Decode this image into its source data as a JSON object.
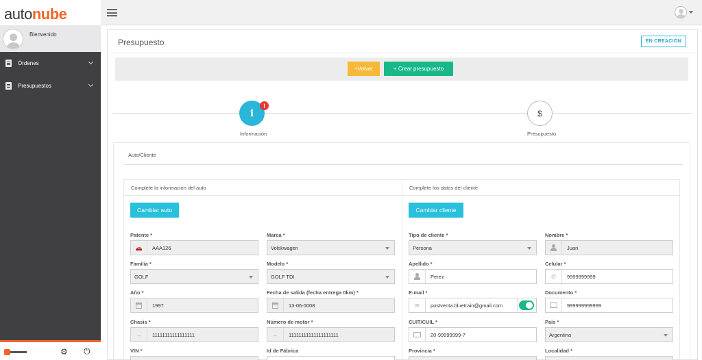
{
  "brand": {
    "logo_part1": "auto",
    "logo_part2": "nube"
  },
  "sidebar": {
    "welcome": "Bienvenido",
    "items": [
      {
        "label": "Órdenes",
        "icon": "clipboard-icon"
      },
      {
        "label": "Presupuestos",
        "icon": "invoice-icon"
      }
    ]
  },
  "main": {
    "title": "Presupuesto",
    "status": "EN CREACIÓN",
    "actions": {
      "volver": "+Volver",
      "crear": "+ Crear presupuesto"
    }
  },
  "steps": [
    {
      "label": "Información",
      "icon": "info-icon",
      "alert": "!"
    },
    {
      "label": "Presupuesto",
      "icon": "invoice-icon"
    }
  ],
  "tab": {
    "label": "Auto/Cliente"
  },
  "auto": {
    "header": "Complete la información del auto",
    "change_button": "Cambiar auto",
    "fields": {
      "patente": {
        "label": "Patente *",
        "value": "AAA126"
      },
      "marca": {
        "label": "Marca *",
        "value": "Volskwagen"
      },
      "familia": {
        "label": "Familia *",
        "value": "GOLF"
      },
      "modelo": {
        "label": "Modelo *",
        "value": "GOLF TDI"
      },
      "anio": {
        "label": "Año *",
        "value": "1997"
      },
      "fecha_salida": {
        "label": "Fecha de salida (fecha entrega 0km) *",
        "value": "13-06-0008"
      },
      "chasis": {
        "label": "Chasis *",
        "value": "11111111111111111"
      },
      "motor": {
        "label": "Número de motor *",
        "value": "11111111111111111111"
      },
      "vin": {
        "label": "VIN *"
      },
      "id_fabrica": {
        "label": "Id de Fábrica"
      }
    }
  },
  "cliente": {
    "header": "Complete los datos del cliente",
    "change_button": "Cambiar cliente",
    "fields": {
      "tipo": {
        "label": "Tipo de cliente *",
        "value": "Persona"
      },
      "nombre": {
        "label": "Nombre *",
        "value": "Juan"
      },
      "apellido": {
        "label": "Apellido *",
        "value": "Perez"
      },
      "celular": {
        "label": "Celular *",
        "value": "9999999999"
      },
      "email": {
        "label": "E-mail *",
        "value": "postventa.bluetrain@gmail.com"
      },
      "documento": {
        "label": "Documento *",
        "value": "999999999999"
      },
      "cuit": {
        "label": "CUIT/CUIL *",
        "value": "20-99999999-7"
      },
      "pais": {
        "label": "País *",
        "value": "Argentina"
      },
      "provincia": {
        "label": "Provincia *"
      },
      "localidad": {
        "label": "Localidad *"
      }
    }
  },
  "colors": {
    "accent": "#29b6d8",
    "brand_orange": "#f0662a",
    "success": "#18b889",
    "warning": "#f6b83a",
    "sidebar": "#404044"
  }
}
